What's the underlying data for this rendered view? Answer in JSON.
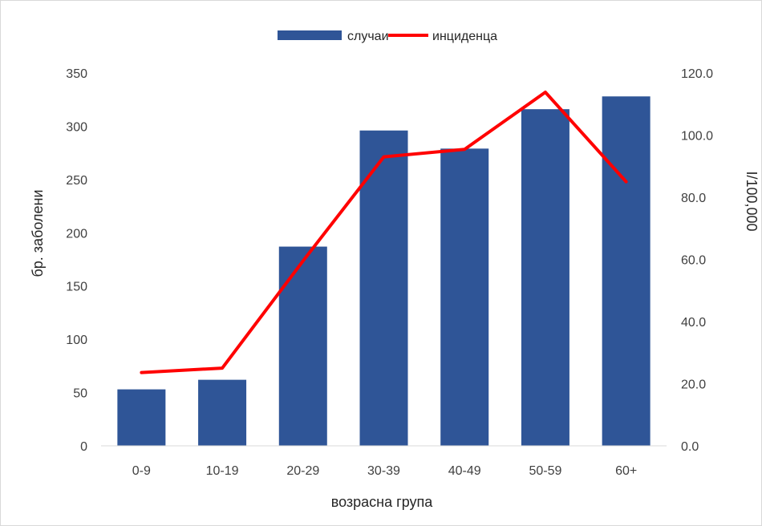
{
  "chart_data": {
    "type": "bar",
    "categories": [
      "0-9",
      "10-19",
      "20-29",
      "30-39",
      "40-49",
      "50-59",
      "60+"
    ],
    "series": [
      {
        "name": "случаи",
        "type": "bar",
        "axis": "left",
        "color": "#2F5597",
        "values": [
          53,
          62,
          187,
          296,
          279,
          316,
          328
        ]
      },
      {
        "name": "инциденца",
        "type": "line",
        "axis": "right",
        "color": "#FF0000",
        "values": [
          23.6,
          25.0,
          59.5,
          93.0,
          95.4,
          113.8,
          85.0
        ]
      }
    ],
    "xlabel": "возрасна група",
    "ylabel": "бр. заболени",
    "y2label": "I/100,000",
    "ylim": [
      0,
      350
    ],
    "y_ticks": [
      "0",
      "50",
      "100",
      "150",
      "200",
      "250",
      "300",
      "350"
    ],
    "y2lim": [
      0,
      120
    ],
    "y2_ticks": [
      "0.0",
      "20.0",
      "40.0",
      "60.0",
      "80.0",
      "100.0",
      "120.0"
    ],
    "grid": false,
    "legend_position": "top"
  }
}
